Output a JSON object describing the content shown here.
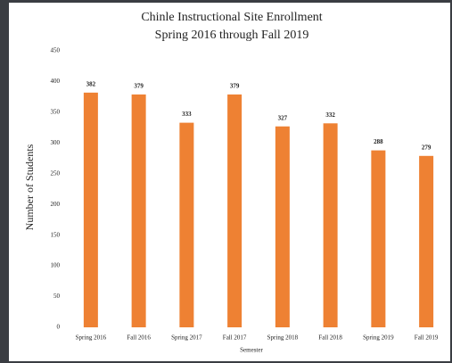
{
  "chart_data": {
    "type": "bar",
    "title": "Chinle Instructional Site Enrollment",
    "subtitle": "Spring 2016 through Fall 2019",
    "x_label": "Semester",
    "y_label": "Number of Students",
    "categories": [
      "Spring 2016",
      "Fall 2016",
      "Spring 2017",
      "Fall 2017",
      "Spring 2018",
      "Fall 2018",
      "Spring 2019",
      "Fall 2019"
    ],
    "values": [
      382,
      379,
      333,
      379,
      327,
      332,
      288,
      279
    ],
    "color": "#ee8133",
    "ylim": [
      0,
      450
    ],
    "yticks": [
      0,
      50,
      100,
      150,
      200,
      250,
      300,
      350,
      400,
      450
    ],
    "grid": false
  }
}
